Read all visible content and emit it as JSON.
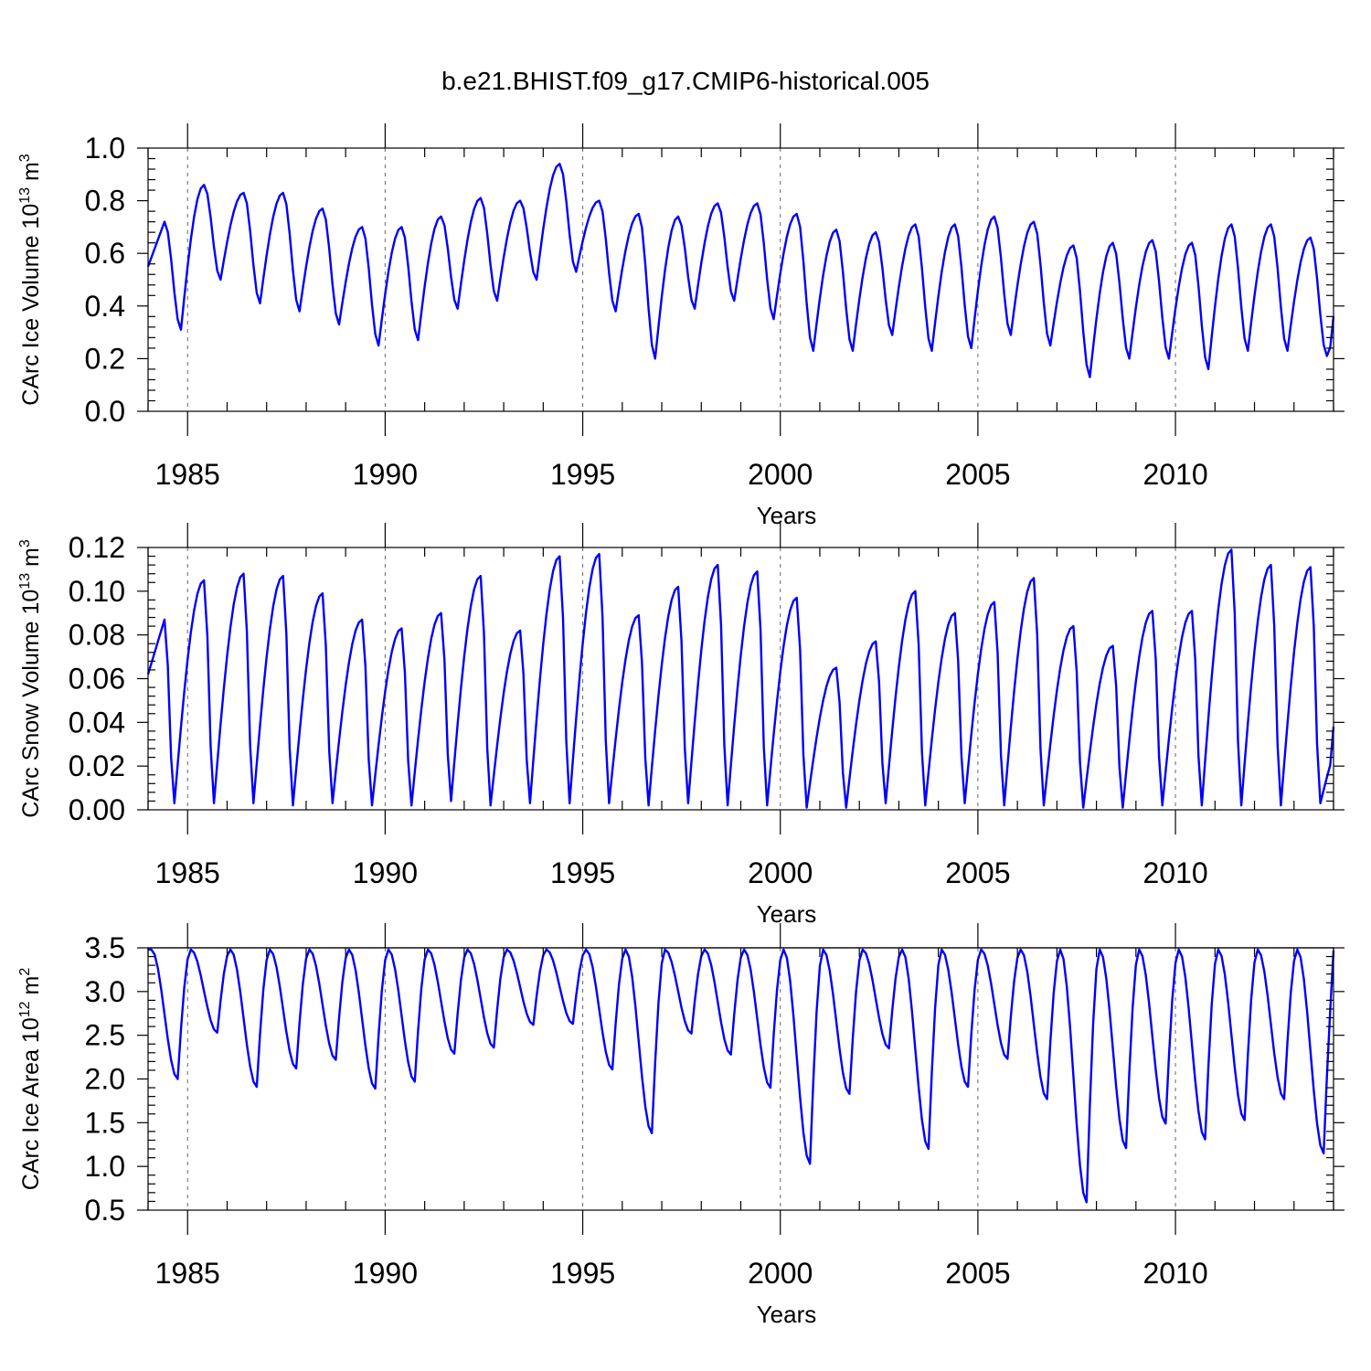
{
  "title": "b.e21.BHIST.f09_g17.CMIP6-historical.005",
  "chart_data": [
    {
      "type": "line",
      "name": "ice-volume",
      "ylabel_text": "CArc Ice Volume 10",
      "ylabel_exp": "13",
      "ylabel_unit": " m",
      "ylabel_unit_exp": "3",
      "xlabel": "Years",
      "xlim": [
        1984,
        2014
      ],
      "ylim": [
        0.0,
        1.0
      ],
      "xticks": [
        1985,
        1990,
        1995,
        2000,
        2005,
        2010
      ],
      "xtick_labels": [
        "1985",
        "1990",
        "1995",
        "2000",
        "2005",
        "2010"
      ],
      "yticks": [
        0.0,
        0.2,
        0.4,
        0.6,
        0.8,
        1.0
      ],
      "ytick_labels": [
        "0.0",
        "0.2",
        "0.4",
        "0.6",
        "0.8",
        "1.0"
      ],
      "grid_x": true,
      "ref_line": null,
      "series_name": "CArc Ice Volume",
      "yearly_max": [
        0.72,
        0.86,
        0.83,
        0.83,
        0.77,
        0.7,
        0.7,
        0.74,
        0.81,
        0.8,
        0.94,
        0.8,
        0.75,
        0.74,
        0.79,
        0.79,
        0.75,
        0.69,
        0.68,
        0.71,
        0.71,
        0.74,
        0.72,
        0.63,
        0.64,
        0.65,
        0.64,
        0.71,
        0.71,
        0.66
      ],
      "yearly_min": [
        0.31,
        0.5,
        0.41,
        0.38,
        0.33,
        0.25,
        0.27,
        0.39,
        0.42,
        0.5,
        0.53,
        0.38,
        0.2,
        0.39,
        0.42,
        0.35,
        0.23,
        0.23,
        0.29,
        0.23,
        0.24,
        0.29,
        0.25,
        0.13,
        0.2,
        0.2,
        0.16,
        0.23,
        0.23,
        0.21
      ],
      "max_month": 5,
      "min_month": 10,
      "start_value": 0.55,
      "end_value": 0.36
    },
    {
      "type": "line",
      "name": "snow-volume",
      "ylabel_text": "CArc Snow Volume 10",
      "ylabel_exp": "13",
      "ylabel_unit": " m",
      "ylabel_unit_exp": "3",
      "xlabel": "Years",
      "xlim": [
        1984,
        2014
      ],
      "ylim": [
        0.0,
        0.12
      ],
      "xticks": [
        1985,
        1990,
        1995,
        2000,
        2005,
        2010
      ],
      "xtick_labels": [
        "1985",
        "1990",
        "1995",
        "2000",
        "2005",
        "2010"
      ],
      "yticks": [
        0.0,
        0.02,
        0.04,
        0.06,
        0.08,
        0.1,
        0.12
      ],
      "ytick_labels": [
        "0.00",
        "0.02",
        "0.04",
        "0.06",
        "0.08",
        "0.10",
        "0.12"
      ],
      "grid_x": true,
      "ref_line": null,
      "series_name": "CArc Snow Volume",
      "yearly_max": [
        0.087,
        0.105,
        0.108,
        0.107,
        0.099,
        0.087,
        0.083,
        0.09,
        0.107,
        0.082,
        0.116,
        0.117,
        0.089,
        0.102,
        0.112,
        0.109,
        0.097,
        0.065,
        0.077,
        0.1,
        0.09,
        0.095,
        0.106,
        0.084,
        0.075,
        0.091,
        0.091,
        0.119,
        0.112,
        0.111
      ],
      "yearly_min": [
        0.003,
        0.003,
        0.003,
        0.002,
        0.003,
        0.002,
        0.002,
        0.004,
        0.002,
        0.003,
        0.003,
        0.003,
        0.002,
        0.003,
        0.002,
        0.002,
        0.001,
        0.001,
        0.003,
        0.002,
        0.003,
        0.002,
        0.002,
        0.001,
        0.001,
        0.002,
        0.002,
        0.002,
        0.002,
        0.003
      ],
      "max_month": 5,
      "min_month": 8,
      "start_value": 0.062,
      "end_value": 0.038
    },
    {
      "type": "line",
      "name": "ice-area",
      "ylabel_text": "CArc Ice Area 10",
      "ylabel_exp": "12",
      "ylabel_unit": " m",
      "ylabel_unit_exp": "2",
      "xlabel": "Years",
      "xlim": [
        1984,
        2014
      ],
      "ylim": [
        0.5,
        3.5
      ],
      "xticks": [
        1985,
        1990,
        1995,
        2000,
        2005,
        2010
      ],
      "xtick_labels": [
        "1985",
        "1990",
        "1995",
        "2000",
        "2005",
        "2010"
      ],
      "yticks": [
        0.5,
        1.0,
        1.5,
        2.0,
        2.5,
        3.0,
        3.5
      ],
      "ytick_labels": [
        "0.5",
        "1.0",
        "1.5",
        "2.0",
        "2.5",
        "3.0",
        "3.5"
      ],
      "grid_x": true,
      "ref_line": 3.5,
      "series_name": "CArc Ice Area",
      "yearly_max": [
        3.48,
        3.48,
        3.48,
        3.48,
        3.48,
        3.48,
        3.48,
        3.48,
        3.48,
        3.48,
        3.48,
        3.48,
        3.48,
        3.48,
        3.48,
        3.48,
        3.48,
        3.48,
        3.48,
        3.48,
        3.48,
        3.48,
        3.48,
        3.48,
        3.48,
        3.48,
        3.48,
        3.48,
        3.48,
        3.48
      ],
      "yearly_min": [
        2.0,
        2.53,
        1.91,
        2.12,
        2.22,
        1.89,
        1.97,
        2.29,
        2.36,
        2.62,
        2.63,
        2.11,
        1.38,
        2.52,
        2.28,
        1.9,
        1.03,
        1.83,
        2.35,
        1.2,
        1.91,
        2.23,
        1.77,
        0.59,
        1.21,
        1.49,
        1.31,
        1.53,
        1.77,
        1.15
      ],
      "max_month": 1,
      "min_month": 9,
      "start_value": 3.48,
      "end_value": 3.47
    }
  ]
}
